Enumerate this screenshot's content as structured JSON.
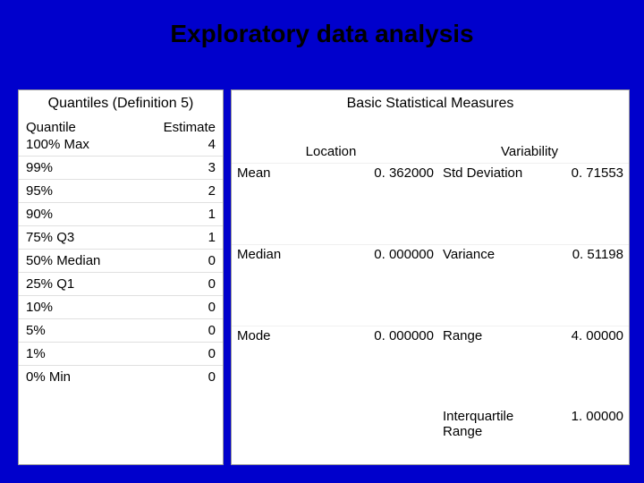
{
  "title": "Exploratory data analysis",
  "left": {
    "heading": "Quantiles (Definition 5)",
    "col1": "Quantile",
    "col2": "Estimate",
    "rows": [
      {
        "label": "100% Max",
        "value": "4"
      },
      {
        "label": "99%",
        "value": "3"
      },
      {
        "label": "95%",
        "value": "2"
      },
      {
        "label": "90%",
        "value": "1"
      },
      {
        "label": "75% Q3",
        "value": "1"
      },
      {
        "label": "50% Median",
        "value": "0"
      },
      {
        "label": "25% Q1",
        "value": "0"
      },
      {
        "label": "10%",
        "value": "0"
      },
      {
        "label": "5%",
        "value": "0"
      },
      {
        "label": "1%",
        "value": "0"
      },
      {
        "label": "0% Min",
        "value": "0"
      }
    ]
  },
  "right": {
    "heading": "Basic Statistical Measures",
    "loc_label": "Location",
    "var_label": "Variability",
    "stats": [
      {
        "loc_name": "Mean",
        "loc_val": "0. 362000",
        "var_name": "Std Deviation",
        "var_val": "0. 71553"
      },
      {
        "loc_name": "Median",
        "loc_val": "0. 000000",
        "var_name": "Variance",
        "var_val": "0. 51198"
      },
      {
        "loc_name": "Mode",
        "loc_val": "0. 000000",
        "var_name": "Range",
        "var_val": "4. 00000"
      },
      {
        "loc_name": "",
        "loc_val": "",
        "var_name": "Interquartile Range",
        "var_val": "1. 00000"
      }
    ]
  },
  "style": {
    "background_color": "#0000cc",
    "panel_background": "#ffffff",
    "title_fontsize": 28,
    "body_fontsize": 15
  }
}
